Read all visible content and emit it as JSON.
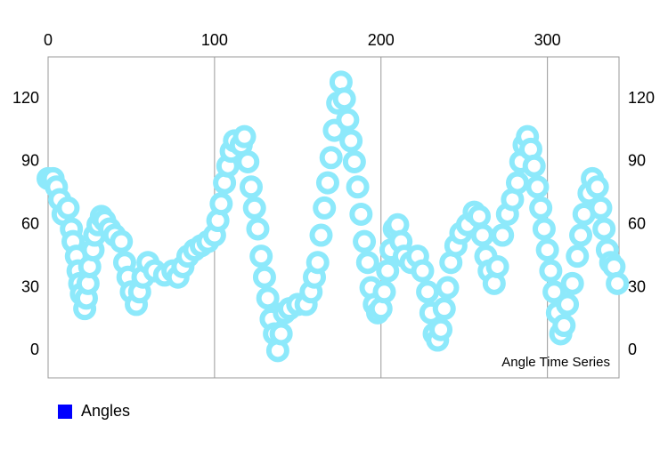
{
  "chart_data": {
    "type": "scatter",
    "description": "Angle Time Series",
    "x": [
      0,
      3,
      5,
      7,
      9,
      12,
      14,
      15,
      17,
      18,
      19,
      20,
      22,
      23,
      24,
      25,
      27,
      28,
      30,
      32,
      34,
      37,
      40,
      44,
      46,
      48,
      50,
      53,
      55,
      57,
      60,
      64,
      70,
      75,
      78,
      81,
      84,
      88,
      92,
      96,
      100,
      102,
      104,
      106,
      108,
      110,
      112,
      116,
      118,
      120,
      122,
      124,
      126,
      128,
      130,
      132,
      134,
      136,
      138,
      140,
      142,
      145,
      150,
      155,
      158,
      160,
      162,
      164,
      166,
      168,
      170,
      172,
      174,
      176,
      178,
      180,
      182,
      184,
      186,
      188,
      190,
      192,
      194,
      196,
      198,
      200,
      202,
      204,
      206,
      208,
      210,
      212,
      214,
      218,
      222,
      225,
      228,
      230,
      232,
      234,
      236,
      238,
      240,
      242,
      245,
      248,
      252,
      256,
      259,
      261,
      263,
      265,
      268,
      270,
      273,
      276,
      279,
      282,
      284,
      286,
      288,
      290,
      292,
      294,
      296,
      298,
      300,
      302,
      304,
      306,
      308,
      310,
      312,
      315,
      318,
      320,
      322,
      325,
      327,
      330,
      332,
      334,
      336,
      338,
      340,
      342
    ],
    "series": [
      {
        "name": "Angles",
        "color": "#8de9fb",
        "legend_color": "#0000ff",
        "values": [
          82,
          82,
          78,
          72,
          65,
          68,
          58,
          52,
          45,
          38,
          32,
          27,
          20,
          25,
          32,
          40,
          48,
          55,
          60,
          64,
          62,
          58,
          55,
          52,
          42,
          35,
          28,
          22,
          28,
          35,
          42,
          38,
          36,
          38,
          35,
          40,
          45,
          48,
          50,
          52,
          55,
          62,
          70,
          80,
          88,
          95,
          100,
          98,
          102,
          90,
          78,
          68,
          58,
          45,
          35,
          25,
          15,
          8,
          0,
          8,
          18,
          20,
          22,
          22,
          28,
          35,
          42,
          55,
          68,
          80,
          92,
          105,
          118,
          128,
          120,
          110,
          100,
          90,
          78,
          65,
          52,
          42,
          30,
          22,
          18,
          20,
          28,
          38,
          48,
          58,
          60,
          52,
          45,
          42,
          45,
          38,
          28,
          18,
          8,
          5,
          10,
          20,
          30,
          42,
          50,
          56,
          60,
          66,
          64,
          55,
          45,
          38,
          32,
          40,
          55,
          65,
          72,
          80,
          90,
          98,
          102,
          96,
          88,
          78,
          68,
          58,
          48,
          38,
          28,
          18,
          8,
          12,
          22,
          32,
          45,
          55,
          65,
          75,
          82,
          78,
          68,
          58,
          48,
          42,
          40,
          32
        ]
      }
    ],
    "xlim": [
      0,
      343
    ],
    "xticks": [
      0,
      100,
      200,
      300
    ],
    "ylim": [
      -13,
      140
    ],
    "yticks": [
      0,
      30,
      60,
      90,
      120
    ],
    "grid": true,
    "legend": "bottom-left"
  }
}
